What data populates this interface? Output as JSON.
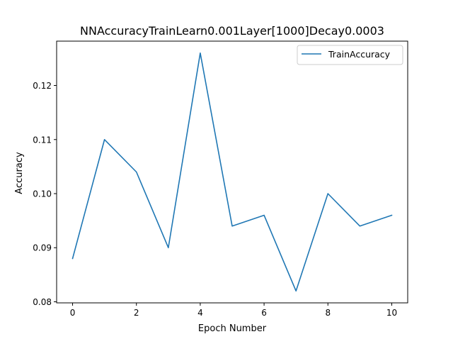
{
  "chart_data": {
    "type": "line",
    "title": "NNAccuracyTrainLearn0.001Layer[1000]Decay0.0003",
    "xlabel": "Epoch Number",
    "ylabel": "Accuracy",
    "xlim": [
      -0.5,
      10.5
    ],
    "ylim": [
      0.0798,
      0.1282
    ],
    "xticks": [
      0,
      2,
      4,
      6,
      8,
      10
    ],
    "xtick_labels": [
      "0",
      "2",
      "4",
      "6",
      "8",
      "10"
    ],
    "yticks": [
      0.08,
      0.09,
      0.1,
      0.11,
      0.12
    ],
    "ytick_labels": [
      "0.08",
      "0.09",
      "0.10",
      "0.11",
      "0.12"
    ],
    "grid": false,
    "legend_position": "top-right",
    "series": [
      {
        "name": "TrainAccuracy",
        "color": "#1f77b4",
        "x": [
          0,
          1,
          2,
          3,
          4,
          5,
          6,
          7,
          8,
          9,
          10
        ],
        "values": [
          0.088,
          0.11,
          0.104,
          0.09,
          0.126,
          0.094,
          0.096,
          0.082,
          0.1,
          0.094,
          0.096
        ]
      }
    ]
  }
}
